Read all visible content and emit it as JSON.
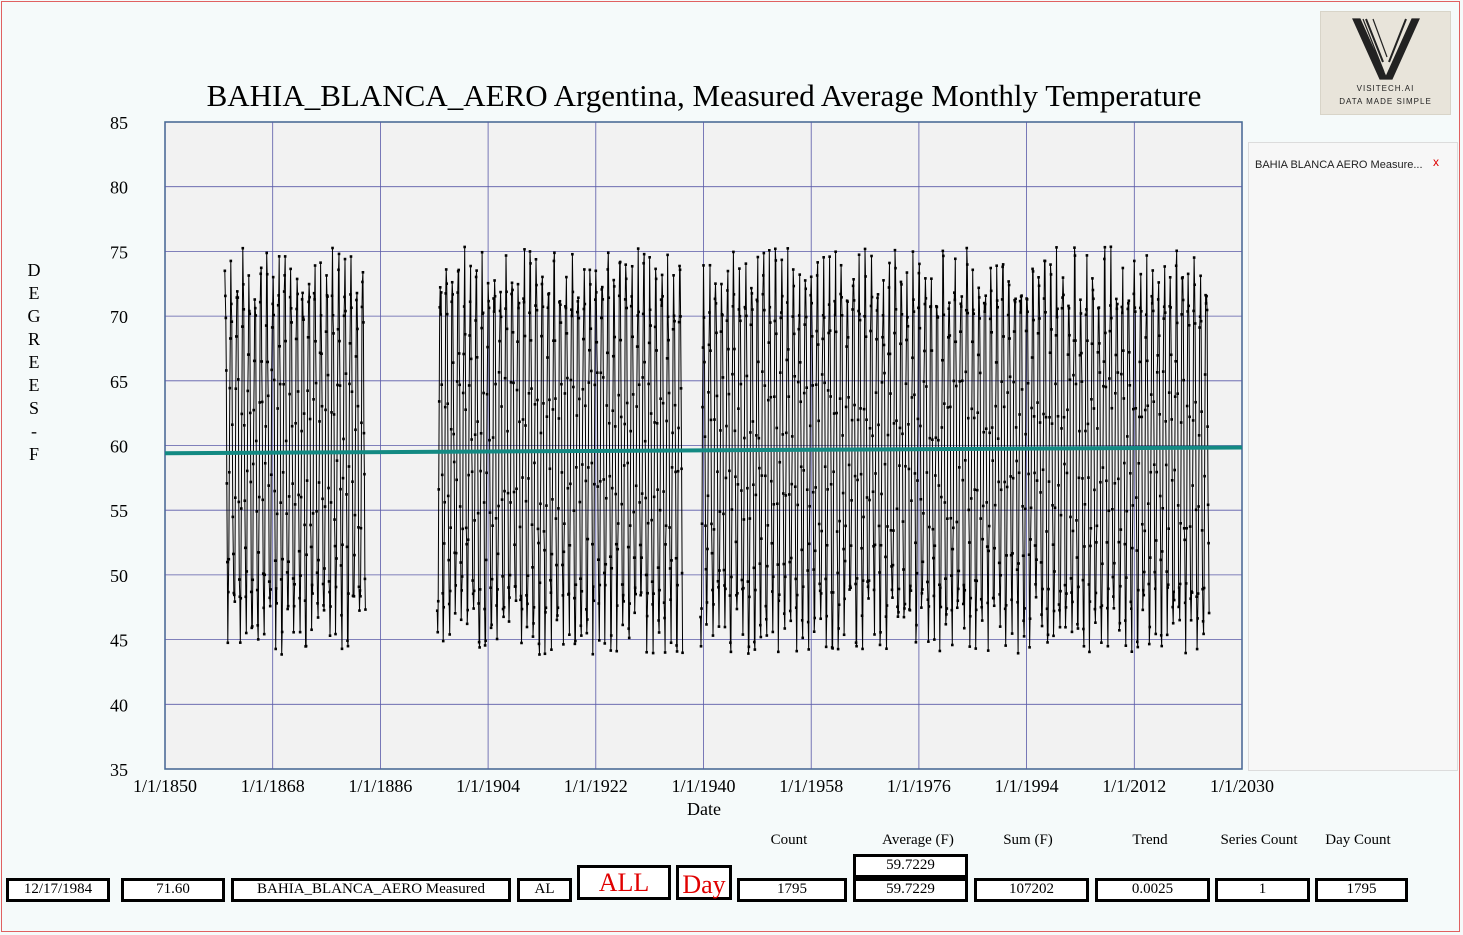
{
  "chart_data": {
    "type": "line",
    "title": "BAHIA_BLANCA_AERO Argentina, Measured Average Monthly Temperature",
    "xlabel": "Date",
    "ylabel": "DEGREES - F",
    "x_ticks": [
      "1/1/1850",
      "1/1/1868",
      "1/1/1886",
      "1/1/1904",
      "1/1/1922",
      "1/1/1940",
      "1/1/1958",
      "1/1/1976",
      "1/1/1994",
      "1/1/2012",
      "1/1/2030"
    ],
    "xlim": [
      1850,
      2030
    ],
    "ylim": [
      35,
      85
    ],
    "y_ticks": [
      35,
      40,
      45,
      50,
      55,
      60,
      65,
      70,
      75,
      80,
      85
    ],
    "grid": true,
    "series": [
      {
        "name": "BAHIA_BLANCA_AERO Measured",
        "color": "#000000",
        "segments": [
          [
            1860.0,
            1883.5
          ],
          [
            1895.5,
            1936.5
          ],
          [
            1939.5,
            2024.5
          ]
        ],
        "annual_mean": 59.6,
        "annual_amplitude": 13.5,
        "min_observed": 40.5,
        "max_observed": 80.0
      }
    ],
    "trend_line": {
      "color": "#138a83",
      "points": [
        [
          1850,
          59.4
        ],
        [
          2030,
          59.85
        ]
      ]
    }
  },
  "legend": {
    "item": "BAHIA  BLANCA  AERO Measure...",
    "close": "x"
  },
  "logo": {
    "line1": "VISITECH.AI",
    "line2": "DATA MADE SIMPLE"
  },
  "stats": {
    "headers": {
      "count": "Count",
      "average": "Average (F)",
      "sum": "Sum (F)",
      "trend": "Trend",
      "series_count": "Series Count",
      "day_count": "Day Count"
    },
    "average_top": "59.7229",
    "date": "12/17/1984",
    "value": "71.60",
    "series_name": "BAHIA_BLANCA_AERO Measured",
    "code": "AL",
    "all_button": "ALL",
    "day_button": "Day",
    "count": "1795",
    "average": "59.7229",
    "sum": "107202",
    "trend": "0.0025",
    "series_count": "1",
    "day_count": "1795"
  }
}
